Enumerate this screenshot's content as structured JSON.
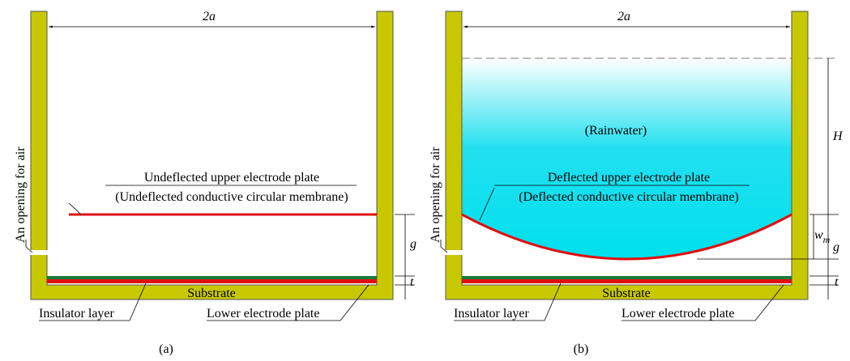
{
  "panels": [
    {
      "width_label": "2a",
      "plate_label": "Undeflected upper electrode plate",
      "membrane_label": "(Undeflected conductive circular membrane)",
      "opening_label": "An opening for air",
      "gap_label": "g",
      "thickness_label": "t",
      "substrate_label": "Substrate",
      "insulator_label": "Insulator layer",
      "lower_electrode_label": "Lower electrode plate",
      "caption": "(a)"
    },
    {
      "width_label": "2a",
      "water_label": "(Rainwater)",
      "height_label": "H",
      "plate_label": "Deflected upper electrode plate",
      "membrane_label": "(Deflected conductive circular membrane)",
      "opening_label": "An opening for air",
      "deflection_label": "w",
      "deflection_subscript": "m",
      "gap_label": "g",
      "thickness_label": "t",
      "substrate_label": "Substrate",
      "insulator_label": "Insulator layer",
      "lower_electrode_label": "Lower electrode plate",
      "caption": "(b)"
    }
  ]
}
